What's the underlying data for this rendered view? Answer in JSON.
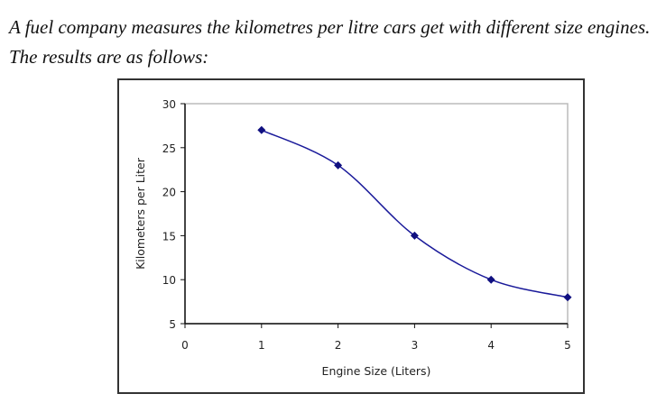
{
  "intro_text": "A fuel company measures the kilometres per litre cars get with different size engines. The results are as follows:",
  "chart_data": {
    "type": "line",
    "title": "",
    "xlabel": "Engine Size (Liters)",
    "ylabel": "Kilometers per Liter",
    "x": [
      1,
      2,
      3,
      4,
      5
    ],
    "series": [
      {
        "name": "Kilometers per Liter",
        "values": [
          27,
          23,
          15,
          10,
          8
        ],
        "color": "#1a1a9a",
        "marker": "diamond",
        "smoothed": true
      }
    ],
    "xlim": [
      0,
      5
    ],
    "ylim": [
      5,
      30
    ],
    "xticks": [
      "0",
      "1",
      "2",
      "3",
      "4",
      "5"
    ],
    "yticks": [
      "5",
      "10",
      "15",
      "20",
      "25",
      "30"
    ],
    "grid": false,
    "legend": "none"
  }
}
